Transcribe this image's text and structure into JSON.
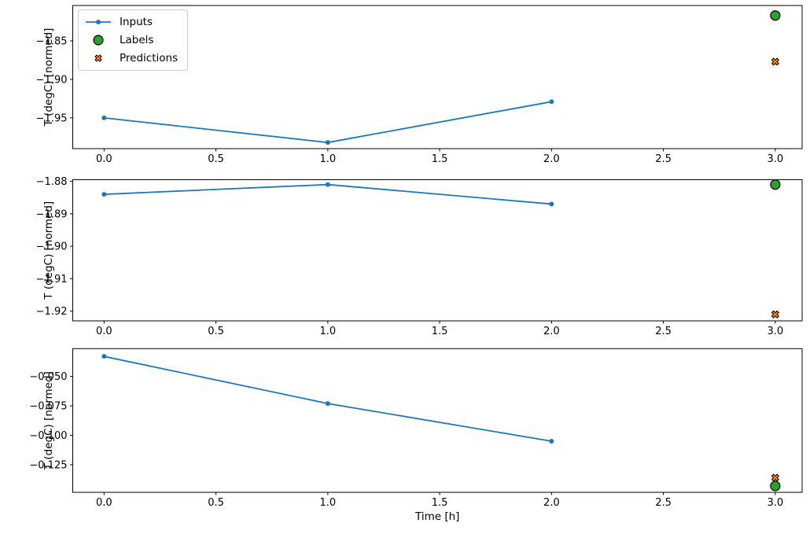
{
  "figure": {
    "background": "#ffffff",
    "xlabel": "Time [h]",
    "x_tick_labels": [
      "0.0",
      "0.5",
      "1.0",
      "1.5",
      "2.0",
      "2.5",
      "3.0"
    ],
    "x_tick_values": [
      0,
      0.5,
      1,
      1.5,
      2,
      2.5,
      3
    ],
    "xlim": [
      -0.14,
      3.12
    ]
  },
  "legend": {
    "items": [
      {
        "label": "Inputs",
        "marker": "line-dot",
        "color": "#1f77b4",
        "edge_color": "#1f77b4"
      },
      {
        "label": "Labels",
        "marker": "circle",
        "color": "#2ca02c",
        "edge_color": "#000000"
      },
      {
        "label": "Predictions",
        "marker": "X",
        "color": "#ff7f0e",
        "edge_color": "#000000"
      }
    ]
  },
  "colors": {
    "inputs_line": "#1f77b4",
    "labels_marker": "#2ca02c",
    "predictions_marker": "#ff7f0e",
    "marker_edge": "#000000",
    "axis": "#000000"
  },
  "chart_data": [
    {
      "type": "line",
      "ylabel": "T (degC) [normed]",
      "ylim": [
        -1.99,
        -1.804
      ],
      "y_ticks": [
        {
          "value": -1.85,
          "label": "−1.85"
        },
        {
          "value": -1.9,
          "label": "−1.90"
        },
        {
          "value": -1.95,
          "label": "−1.95"
        }
      ],
      "series": [
        {
          "name": "Inputs",
          "x": [
            0,
            1,
            2
          ],
          "y": [
            -1.95,
            -1.982,
            -1.929
          ]
        }
      ],
      "points": [
        {
          "name": "Labels",
          "marker": "circle",
          "x": 3,
          "y": -1.817
        },
        {
          "name": "Predictions",
          "marker": "X",
          "x": 3,
          "y": -1.877
        }
      ],
      "xlabel": ""
    },
    {
      "type": "line",
      "ylabel": "T (degC) [normed]",
      "ylim": [
        -1.923,
        -1.8795
      ],
      "y_ticks": [
        {
          "value": -1.88,
          "label": "−1.88"
        },
        {
          "value": -1.89,
          "label": "−1.89"
        },
        {
          "value": -1.9,
          "label": "−1.90"
        },
        {
          "value": -1.91,
          "label": "−1.91"
        },
        {
          "value": -1.92,
          "label": "−1.92"
        }
      ],
      "series": [
        {
          "name": "Inputs",
          "x": [
            0,
            1,
            2
          ],
          "y": [
            -1.884,
            -1.881,
            -1.887
          ]
        }
      ],
      "points": [
        {
          "name": "Labels",
          "marker": "circle",
          "x": 3,
          "y": -1.881
        },
        {
          "name": "Predictions",
          "marker": "X",
          "x": 3,
          "y": -1.921
        }
      ],
      "xlabel": ""
    },
    {
      "type": "line",
      "ylabel": "T (degC) [normed]",
      "ylim": [
        -0.1484,
        -0.0264
      ],
      "y_ticks": [
        {
          "value": -0.05,
          "label": "−0.050"
        },
        {
          "value": -0.075,
          "label": "−0.075"
        },
        {
          "value": -0.1,
          "label": "−0.100"
        },
        {
          "value": -0.125,
          "label": "−0.125"
        }
      ],
      "series": [
        {
          "name": "Inputs",
          "x": [
            0,
            1,
            2
          ],
          "y": [
            -0.033,
            -0.073,
            -0.105
          ]
        }
      ],
      "points": [
        {
          "name": "Predictions",
          "marker": "X",
          "x": 3,
          "y": -0.136
        },
        {
          "name": "Labels",
          "marker": "circle",
          "x": 3,
          "y": -0.143
        }
      ],
      "xlabel": "Time [h]"
    }
  ]
}
